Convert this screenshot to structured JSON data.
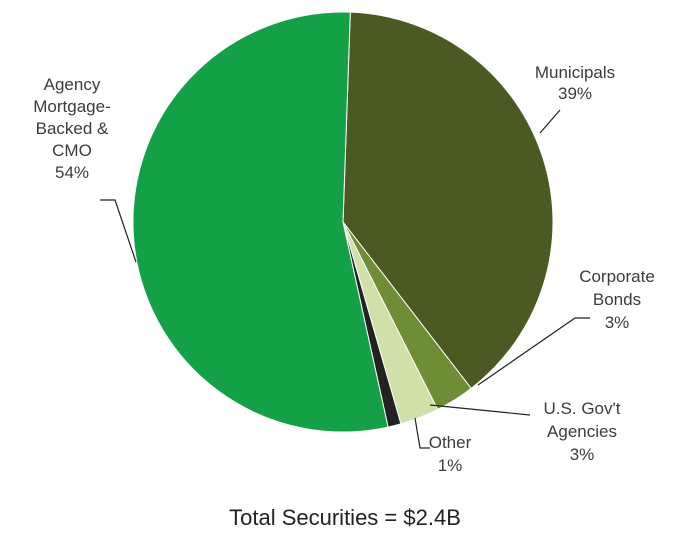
{
  "chart_data": {
    "type": "pie",
    "slices": [
      {
        "label": "Municipals",
        "value": 39,
        "pct_label": "39%",
        "color": "#4b5a22"
      },
      {
        "label": "Corporate Bonds",
        "value": 3,
        "pct_label": "3%",
        "color": "#6f8d34"
      },
      {
        "label": "U.S. Gov't Agencies",
        "value": 3,
        "pct_label": "3%",
        "color": "#cfe0a8"
      },
      {
        "label": "Other",
        "value": 1,
        "pct_label": "1%",
        "color": "#222222"
      },
      {
        "label": "Agency Mortgage-Backed & CMO",
        "value": 54,
        "pct_label": "54%",
        "color": "#13a047"
      }
    ],
    "label_lines": [
      [
        "Municipals",
        "39%"
      ],
      [
        "Corporate",
        "Bonds",
        "3%"
      ],
      [
        "U.S. Gov't",
        "Agencies",
        "3%"
      ],
      [
        "Other",
        "1%"
      ],
      [
        "Agency",
        "Mortgage-",
        "Backed &",
        "CMO",
        "54%"
      ]
    ],
    "total_label": "Total Securities = $2.4B"
  }
}
